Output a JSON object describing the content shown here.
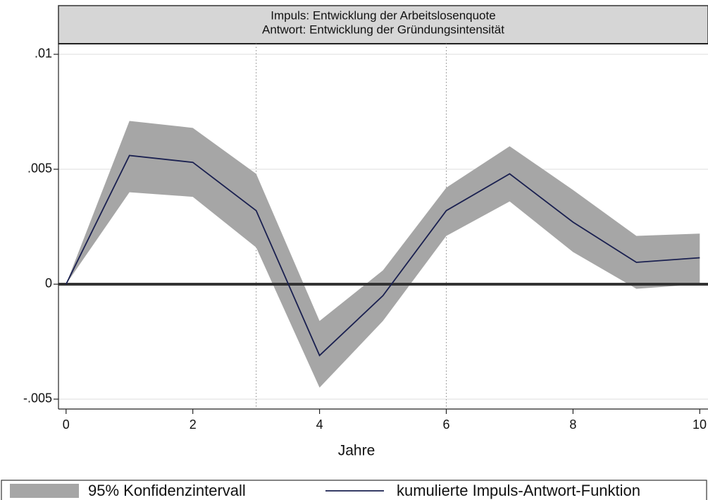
{
  "chart_data": {
    "type": "line",
    "title": [
      "Impuls: Entwicklung der Arbeitslosenquote",
      "Antwort: Entwicklung der Gründungsintensität"
    ],
    "x_label": "Jahre",
    "x": [
      0,
      1,
      2,
      3,
      4,
      5,
      6,
      7,
      8,
      9,
      10
    ],
    "series": [
      {
        "name": "95% Konfidenzintervall",
        "kind": "band",
        "color": "#a6a6a6",
        "lower": [
          0,
          0.004,
          0.0038,
          0.0016,
          -0.0045,
          -0.0016,
          0.0021,
          0.0036,
          0.0014,
          -0.0002,
          0
        ],
        "upper": [
          0,
          0.0071,
          0.0068,
          0.0048,
          -0.0016,
          0.0006,
          0.0042,
          0.006,
          0.0041,
          0.0021,
          0.0022
        ]
      },
      {
        "name": "kumulierte Impuls-Antwort-Funktion",
        "kind": "line",
        "color": "#1a2050",
        "values": [
          0,
          0.0056,
          0.0053,
          0.0032,
          -0.0031,
          -0.0005,
          0.0032,
          0.0048,
          0.0027,
          0.00095,
          0.00115
        ]
      }
    ],
    "xlim": [
      -0.12,
      10.13
    ],
    "ylim": [
      -0.00543,
      0.01046
    ],
    "xticks": [
      0,
      2,
      4,
      6,
      8,
      10
    ],
    "yticks": [
      {
        "value": 0.01,
        "label": ".01"
      },
      {
        "value": 0.005,
        "label": ".005"
      },
      0,
      {
        "value": -0.005,
        "label": "-.005"
      }
    ],
    "grid": true,
    "vlines": [
      3,
      6
    ],
    "hline": 0
  }
}
